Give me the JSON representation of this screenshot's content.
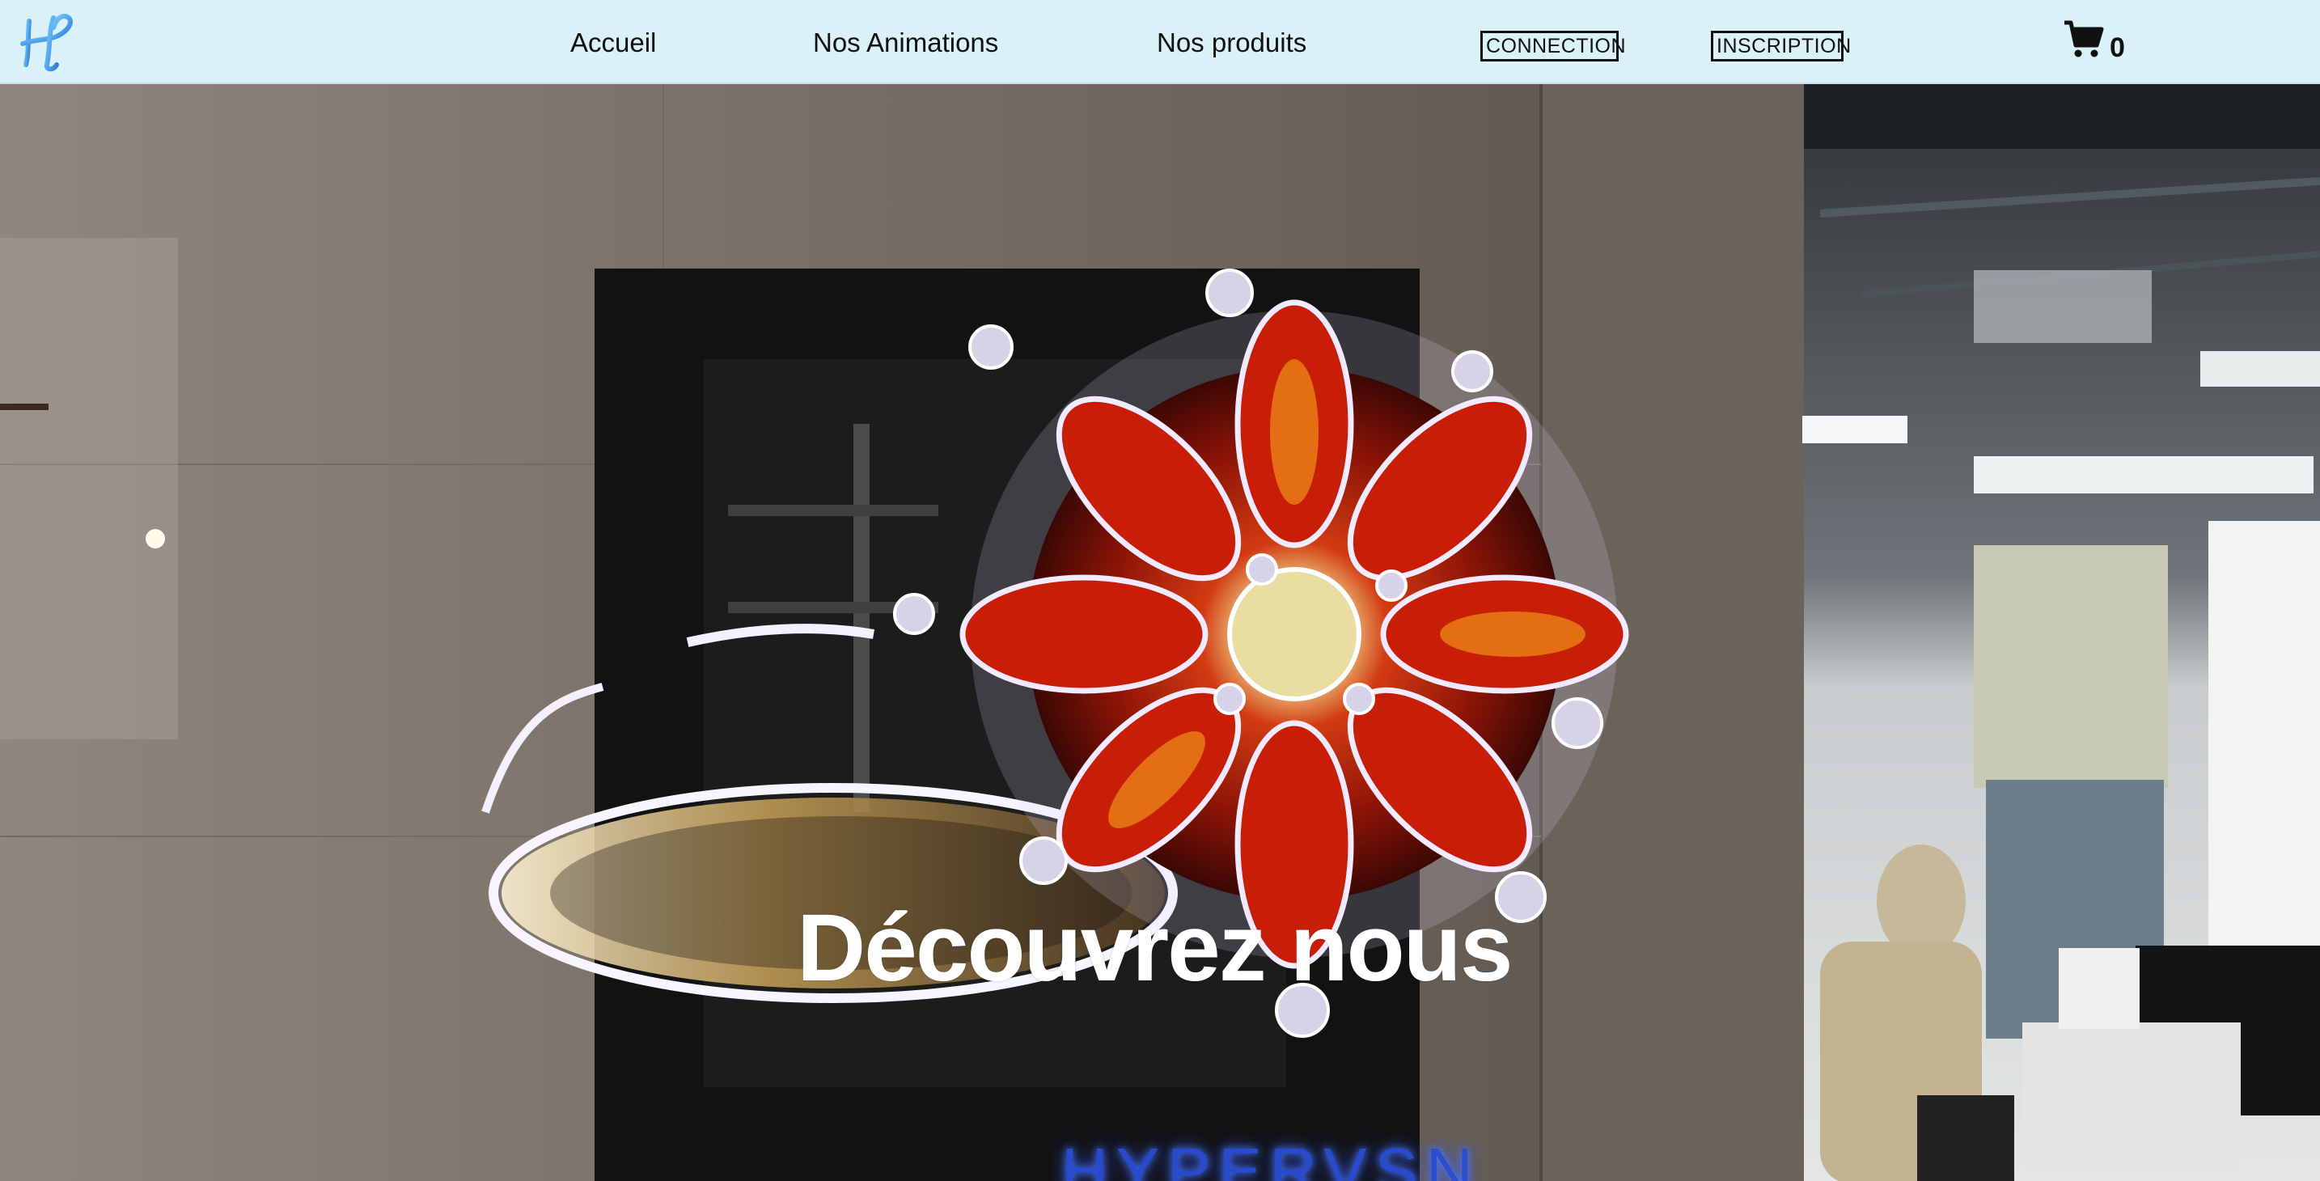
{
  "header": {
    "nav": {
      "home": "Accueil",
      "animations": "Nos Animations",
      "products": "Nos produits"
    },
    "buttons": {
      "connection": "CONNECTION",
      "inscription": "INSCRIPTION"
    },
    "cart": {
      "icon": "cart-icon",
      "count": "0"
    },
    "logo_icon": "hp-logo-icon"
  },
  "hero": {
    "title": "Découvrez nous",
    "sign_text": "HYPERVSN"
  },
  "colors": {
    "header_bg": "#d9f1f7",
    "logo_blue": "#3aa0e8",
    "sign_blue": "#2a4dd8"
  }
}
